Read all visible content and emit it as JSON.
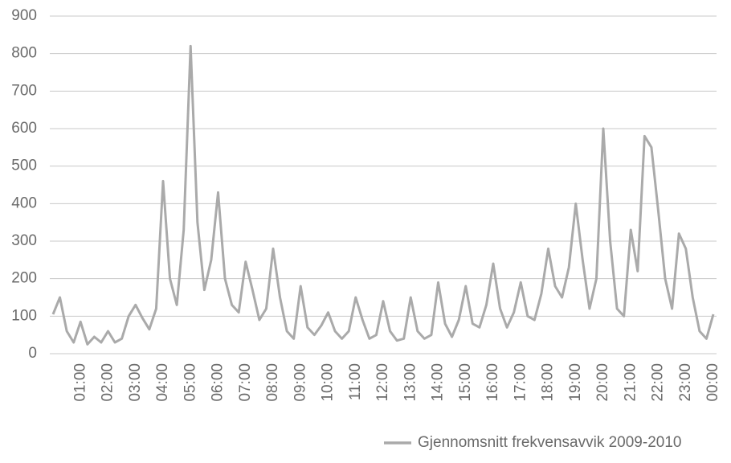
{
  "chart_data": {
    "type": "line",
    "x": [
      0,
      0.25,
      0.5,
      0.75,
      1,
      1.25,
      1.5,
      1.75,
      2,
      2.25,
      2.5,
      2.75,
      3,
      3.25,
      3.5,
      3.75,
      4,
      4.25,
      4.5,
      4.75,
      5,
      5.25,
      5.5,
      5.75,
      6,
      6.25,
      6.5,
      6.75,
      7,
      7.25,
      7.5,
      7.75,
      8,
      8.25,
      8.5,
      8.75,
      9,
      9.25,
      9.5,
      9.75,
      10,
      10.25,
      10.5,
      10.75,
      11,
      11.25,
      11.5,
      11.75,
      12,
      12.25,
      12.5,
      12.75,
      13,
      13.25,
      13.5,
      13.75,
      14,
      14.25,
      14.5,
      14.75,
      15,
      15.25,
      15.5,
      15.75,
      16,
      16.25,
      16.5,
      16.75,
      17,
      17.25,
      17.5,
      17.75,
      18,
      18.25,
      18.5,
      18.75,
      19,
      19.25,
      19.5,
      19.75,
      20,
      20.25,
      20.5,
      20.75,
      21,
      21.25,
      21.5,
      21.75,
      22,
      22.25,
      22.5,
      22.75,
      23,
      23.25,
      23.5,
      23.75,
      24
    ],
    "series": [
      {
        "name": "Gjennomsnitt frekvensavvik 2009-2010",
        "color": "#aaaaaa",
        "values": [
          105,
          150,
          60,
          30,
          85,
          25,
          45,
          30,
          60,
          30,
          40,
          100,
          130,
          95,
          65,
          120,
          460,
          200,
          130,
          330,
          820,
          350,
          170,
          250,
          430,
          200,
          130,
          110,
          245,
          170,
          90,
          120,
          280,
          150,
          60,
          40,
          180,
          70,
          50,
          75,
          110,
          60,
          40,
          60,
          150,
          90,
          40,
          50,
          140,
          60,
          35,
          40,
          150,
          60,
          40,
          50,
          190,
          80,
          45,
          90,
          180,
          80,
          70,
          130,
          240,
          120,
          70,
          110,
          190,
          100,
          90,
          160,
          280,
          180,
          150,
          230,
          400,
          250,
          120,
          200,
          600,
          300,
          120,
          100,
          330,
          220,
          580,
          550,
          380,
          200,
          120,
          320,
          280,
          150,
          60,
          40,
          105
        ]
      }
    ],
    "xlim": [
      0,
      24
    ],
    "xticks": [
      {
        "value": 1,
        "label": "01:00"
      },
      {
        "value": 2,
        "label": "02:00"
      },
      {
        "value": 3,
        "label": "03:00"
      },
      {
        "value": 4,
        "label": "04:00"
      },
      {
        "value": 5,
        "label": "05:00"
      },
      {
        "value": 6,
        "label": "06:00"
      },
      {
        "value": 7,
        "label": "07:00"
      },
      {
        "value": 8,
        "label": "08:00"
      },
      {
        "value": 9,
        "label": "09:00"
      },
      {
        "value": 10,
        "label": "10:00"
      },
      {
        "value": 11,
        "label": "11:00"
      },
      {
        "value": 12,
        "label": "12:00"
      },
      {
        "value": 13,
        "label": "13:00"
      },
      {
        "value": 14,
        "label": "14:00"
      },
      {
        "value": 15,
        "label": "15:00"
      },
      {
        "value": 16,
        "label": "16:00"
      },
      {
        "value": 17,
        "label": "17:00"
      },
      {
        "value": 18,
        "label": "18:00"
      },
      {
        "value": 19,
        "label": "19:00"
      },
      {
        "value": 20,
        "label": "20:00"
      },
      {
        "value": 21,
        "label": "21:00"
      },
      {
        "value": 22,
        "label": "22:00"
      },
      {
        "value": 23,
        "label": "23:00"
      },
      {
        "value": 24,
        "label": "00:00"
      }
    ],
    "ylim": [
      0,
      900
    ],
    "yticks": [
      0,
      100,
      200,
      300,
      400,
      500,
      600,
      700,
      800,
      900
    ],
    "grid": true
  }
}
